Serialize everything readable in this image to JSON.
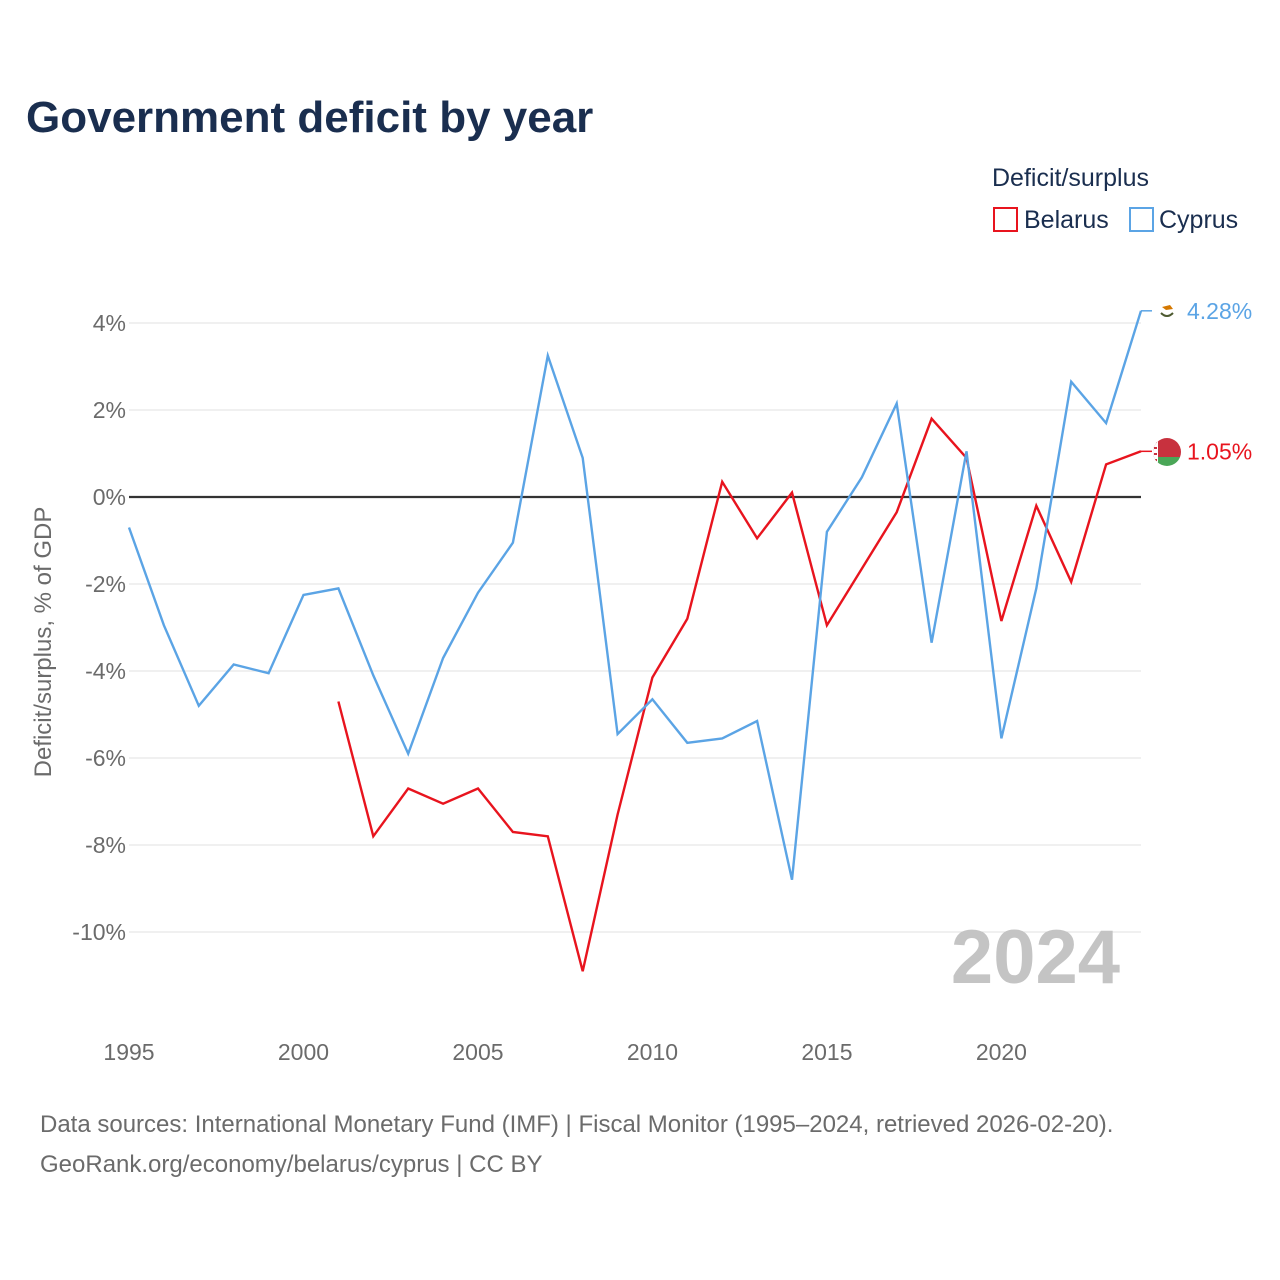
{
  "header": {
    "title": "Government deficit by year"
  },
  "legend": {
    "title": "Deficit/surplus"
  },
  "watermark": "2024",
  "footer": {
    "sources": "Data sources: International Monetary Fund (IMF) | Fiscal Monitor (1995–2024, retrieved 2026-02-20).",
    "credit": "GeoRank.org/economy/belarus/cyprus | CC BY"
  },
  "colors": {
    "belarus": "#e8141e",
    "cyprus": "#5ba4e5",
    "zero_line": "#333333",
    "grid": "#e6e6e6"
  },
  "chart_data": {
    "type": "line",
    "title": "Government deficit by year",
    "xlabel": "",
    "ylabel": "Deficit/surplus, % of GDP",
    "xlim": [
      1995,
      2024
    ],
    "ylim": [
      -12,
      4.4
    ],
    "x_ticks": [
      1995,
      2000,
      2005,
      2010,
      2015,
      2020
    ],
    "y_ticks": [
      4,
      2,
      0,
      -2,
      -4,
      -6,
      -8,
      -10
    ],
    "y_tick_labels": [
      "4%",
      "2%",
      "0%",
      "-2%",
      "-4%",
      "-6%",
      "-8%",
      "-10%"
    ],
    "grid": true,
    "legend_position": "top-right",
    "series": [
      {
        "name": "Belarus",
        "color": "#e8141e",
        "end_label": "1.05%",
        "flag_icon": "belarus-flag-icon",
        "points": [
          [
            2001,
            -4.7
          ],
          [
            2002,
            -7.8
          ],
          [
            2003,
            -6.7
          ],
          [
            2004,
            -7.05
          ],
          [
            2005,
            -6.7
          ],
          [
            2006,
            -7.7
          ],
          [
            2007,
            -7.8
          ],
          [
            2008,
            -10.9
          ],
          [
            2009,
            -7.3
          ],
          [
            2010,
            -4.15
          ],
          [
            2011,
            -2.8
          ],
          [
            2012,
            0.35
          ],
          [
            2013,
            -0.95
          ],
          [
            2014,
            0.1
          ],
          [
            2015,
            -2.95
          ],
          [
            2016,
            -1.65
          ],
          [
            2017,
            -0.35
          ],
          [
            2018,
            1.8
          ],
          [
            2019,
            0.9
          ],
          [
            2020,
            -2.85
          ],
          [
            2021,
            -0.2
          ],
          [
            2022,
            -1.95
          ],
          [
            2023,
            0.75
          ],
          [
            2024,
            1.05
          ]
        ]
      },
      {
        "name": "Cyprus",
        "color": "#5ba4e5",
        "end_label": "4.28%",
        "flag_icon": "cyprus-flag-icon",
        "points": [
          [
            1995,
            -0.7
          ],
          [
            1996,
            -2.95
          ],
          [
            1997,
            -4.8
          ],
          [
            1998,
            -3.85
          ],
          [
            1999,
            -4.05
          ],
          [
            2000,
            -2.25
          ],
          [
            2001,
            -2.1
          ],
          [
            2002,
            -4.1
          ],
          [
            2003,
            -5.9
          ],
          [
            2004,
            -3.7
          ],
          [
            2005,
            -2.2
          ],
          [
            2006,
            -1.05
          ],
          [
            2007,
            3.25
          ],
          [
            2008,
            0.9
          ],
          [
            2009,
            -5.45
          ],
          [
            2010,
            -4.65
          ],
          [
            2011,
            -5.65
          ],
          [
            2012,
            -5.55
          ],
          [
            2013,
            -5.15
          ],
          [
            2014,
            -8.8
          ],
          [
            2015,
            -0.8
          ],
          [
            2016,
            0.45
          ],
          [
            2017,
            2.15
          ],
          [
            2018,
            -3.35
          ],
          [
            2019,
            1.05
          ],
          [
            2020,
            -5.55
          ],
          [
            2021,
            -2.1
          ],
          [
            2022,
            2.65
          ],
          [
            2023,
            1.7
          ],
          [
            2024,
            4.28
          ]
        ]
      }
    ]
  }
}
